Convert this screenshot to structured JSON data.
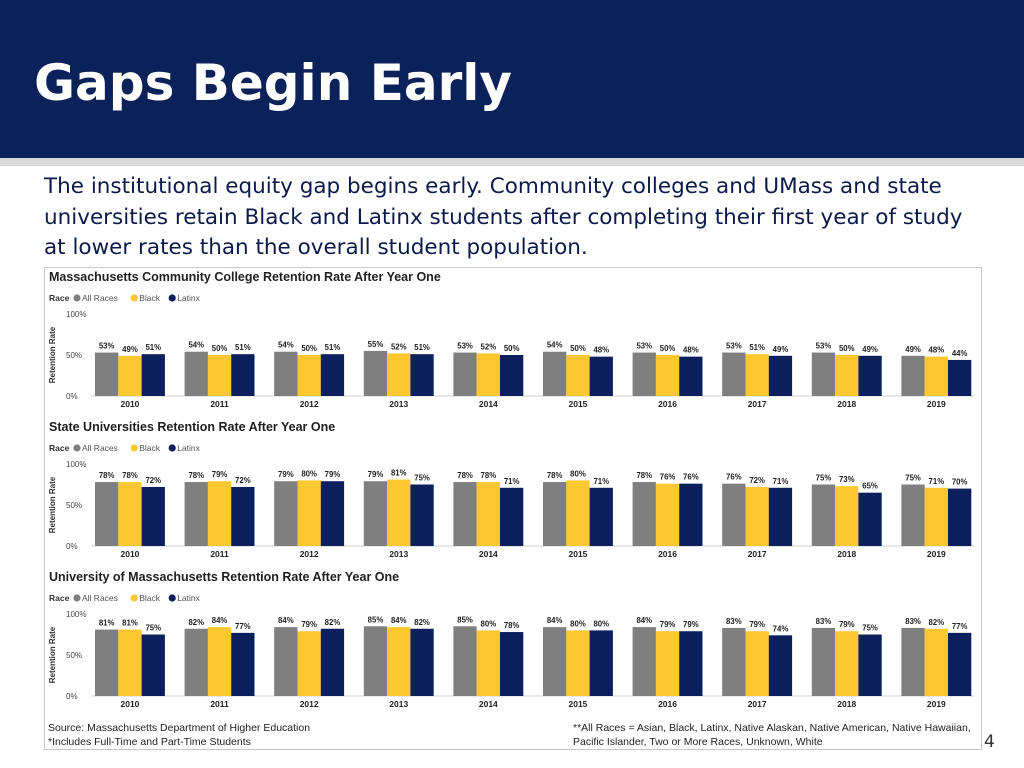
{
  "slide": {
    "title": "Gaps Begin Early",
    "body": "The institutional equity gap begins early. Community colleges and UMass and state universities retain Black and Latinx students after completing their first year of study at lower rates than the overall student population.",
    "slide_number": "4"
  },
  "legend": {
    "heading": "Race",
    "items": [
      {
        "name": "All Races",
        "color": "#7f7f7f"
      },
      {
        "name": "Black",
        "color": "#fdc82f"
      },
      {
        "name": "Latinx",
        "color": "#0a1f5c"
      }
    ]
  },
  "footnotes": {
    "source": "Source: Massachusetts Department of Higher Education",
    "full_time": "*Includes Full-Time and Part-Time Students",
    "all_races_line1": "**All Races = Asian, Black, Latinx, Native Alaskan, Native American, Native Hawaiian,",
    "all_races_line2": "Pacific Islander, Two or More Races, Unknown, White"
  },
  "chart_data": [
    {
      "type": "bar",
      "title": "Massachusetts Community College Retention Rate After Year One",
      "ylabel": "Retention Rate",
      "yticks": [
        "0%",
        "50%",
        "100%"
      ],
      "ylim": [
        0,
        100
      ],
      "categories": [
        "2010",
        "2011",
        "2012",
        "2013",
        "2014",
        "2015",
        "2016",
        "2017",
        "2018",
        "2019"
      ],
      "series": [
        {
          "name": "All Races",
          "values": [
            53,
            54,
            54,
            55,
            53,
            54,
            53,
            53,
            53,
            49
          ]
        },
        {
          "name": "Black",
          "values": [
            49,
            50,
            50,
            52,
            52,
            50,
            50,
            51,
            50,
            48
          ]
        },
        {
          "name": "Latinx",
          "values": [
            51,
            51,
            51,
            51,
            50,
            48,
            48,
            49,
            49,
            44
          ]
        }
      ]
    },
    {
      "type": "bar",
      "title": "State Universities Retention Rate After Year One",
      "ylabel": "Retention Rate",
      "yticks": [
        "0%",
        "50%",
        "100%"
      ],
      "ylim": [
        0,
        100
      ],
      "categories": [
        "2010",
        "2011",
        "2012",
        "2013",
        "2014",
        "2015",
        "2016",
        "2017",
        "2018",
        "2019"
      ],
      "series": [
        {
          "name": "All Races",
          "values": [
            78,
            78,
            79,
            79,
            78,
            78,
            78,
            76,
            75,
            75
          ]
        },
        {
          "name": "Black",
          "values": [
            78,
            79,
            80,
            81,
            78,
            80,
            76,
            72,
            73,
            71
          ]
        },
        {
          "name": "Latinx",
          "values": [
            72,
            72,
            79,
            75,
            71,
            71,
            76,
            71,
            65,
            70
          ]
        }
      ]
    },
    {
      "type": "bar",
      "title": "University of Massachusetts Retention Rate After Year One",
      "ylabel": "Retention Rate",
      "yticks": [
        "0%",
        "50%",
        "100%"
      ],
      "ylim": [
        0,
        100
      ],
      "categories": [
        "2010",
        "2011",
        "2012",
        "2013",
        "2014",
        "2015",
        "2016",
        "2017",
        "2018",
        "2019"
      ],
      "series": [
        {
          "name": "All Races",
          "values": [
            81,
            82,
            84,
            85,
            85,
            84,
            84,
            83,
            83,
            83
          ]
        },
        {
          "name": "Black",
          "values": [
            81,
            84,
            79,
            84,
            80,
            80,
            79,
            79,
            79,
            82
          ]
        },
        {
          "name": "Latinx",
          "values": [
            75,
            77,
            82,
            82,
            78,
            80,
            79,
            74,
            75,
            77
          ]
        }
      ]
    }
  ]
}
